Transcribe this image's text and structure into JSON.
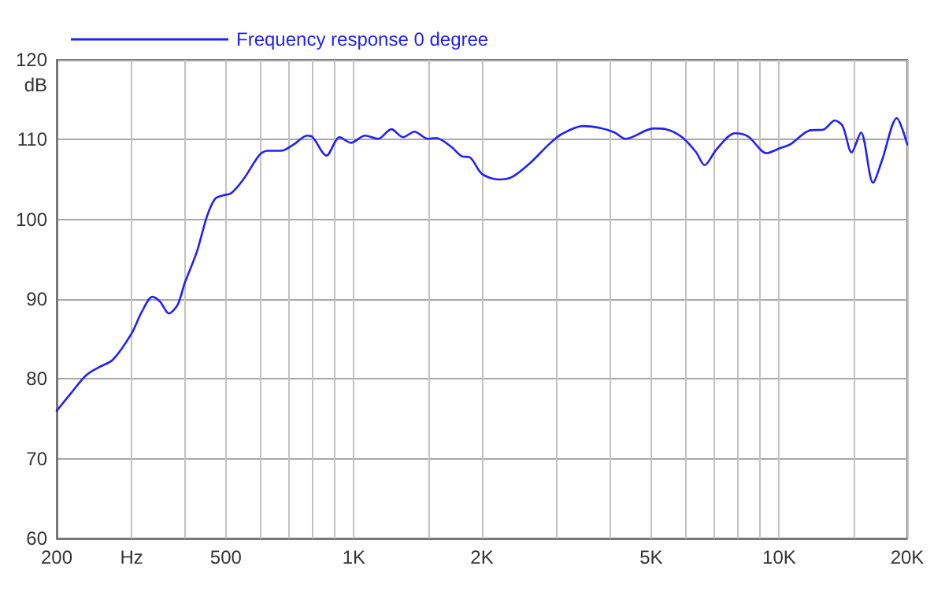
{
  "chart_data": {
    "type": "line",
    "ylabel": "dB",
    "x": [
      200,
      216,
      235,
      252,
      271,
      300,
      317,
      336,
      350,
      367,
      385,
      400,
      427,
      452,
      472,
      492,
      515,
      551,
      600,
      626,
      673,
      722,
      776,
      800,
      862,
      925,
      984,
      1062,
      1139,
      1225,
      1304,
      1388,
      1492,
      1558,
      1694,
      1794,
      1870,
      2000,
      2192,
      2352,
      2600,
      2874,
      3080,
      3454,
      3760,
      4100,
      4350,
      5063,
      5421,
      5910,
      6380,
      6674,
      7128,
      7870,
      8453,
      9340,
      10020,
      10610,
      11720,
      12760,
      13510,
      14100,
      14800,
      15570,
      16620,
      17450,
      18900,
      20000
    ],
    "series": [
      {
        "name": "Frequency response 0 degree",
        "color": "#2020ff",
        "values": [
          76.0,
          78.2,
          80.5,
          81.5,
          82.4,
          85.7,
          88.4,
          90.3,
          89.7,
          88.2,
          89.3,
          92.0,
          95.9,
          100.5,
          102.6,
          103.0,
          103.3,
          105.1,
          108.1,
          108.6,
          108.6,
          109.4,
          110.5,
          110.3,
          108.0,
          110.3,
          109.6,
          110.5,
          110.1,
          111.3,
          110.3,
          111.0,
          110.1,
          110.2,
          109.1,
          107.9,
          107.8,
          105.7,
          105.0,
          105.3,
          107.1,
          109.4,
          110.7,
          111.7,
          111.5,
          110.9,
          110.1,
          111.4,
          111.3,
          110.3,
          108.4,
          106.8,
          108.8,
          110.8,
          110.4,
          108.3,
          108.9,
          109.4,
          111.1,
          111.3,
          112.4,
          111.7,
          108.4,
          110.9,
          104.6,
          107.4,
          112.7,
          109.4
        ]
      }
    ],
    "xlim": [
      200,
      20000
    ],
    "xticks": [
      200,
      {
        "value": 300,
        "label": "Hz"
      },
      {
        "value": 400,
        "label": null
      },
      500,
      {
        "value": 600,
        "label": null
      },
      {
        "value": 700,
        "label": null
      },
      {
        "value": 800,
        "label": null
      },
      {
        "value": 900,
        "label": null
      },
      {
        "value": 1000,
        "label": "1K"
      },
      {
        "value": 1500,
        "label": null
      },
      {
        "value": 2000,
        "label": "2K"
      },
      {
        "value": 3000,
        "label": null
      },
      {
        "value": 4000,
        "label": null
      },
      {
        "value": 5000,
        "label": "5K"
      },
      {
        "value": 6000,
        "label": null
      },
      {
        "value": 7000,
        "label": null
      },
      {
        "value": 8000,
        "label": null
      },
      {
        "value": 9000,
        "label": null
      },
      {
        "value": 10000,
        "label": "10K"
      },
      {
        "value": 15000,
        "label": null
      },
      {
        "value": 20000,
        "label": "20K"
      }
    ],
    "ylim": [
      60,
      120
    ],
    "yticks": [
      60,
      70,
      80,
      90,
      100,
      110,
      120
    ],
    "log": "x",
    "grid": true,
    "legend": "top left",
    "marker": "none",
    "line_style": "solid"
  }
}
